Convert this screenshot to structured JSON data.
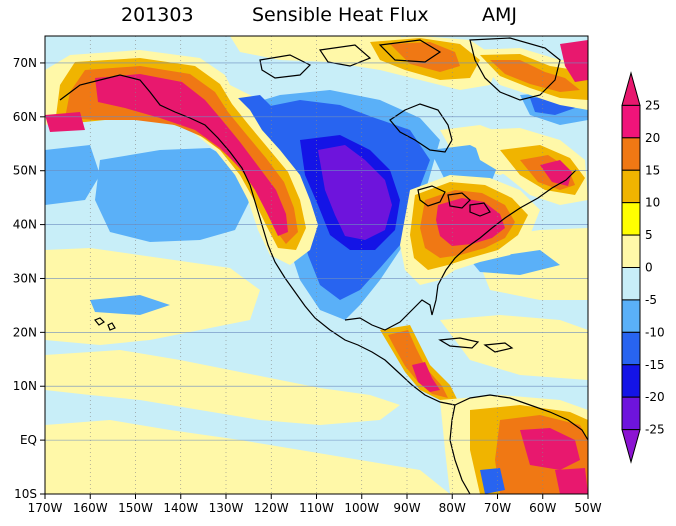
{
  "title": {
    "date": "201303",
    "field": "Sensible Heat Flux",
    "season": "AMJ"
  },
  "map": {
    "lon_labels": [
      "170W",
      "160W",
      "150W",
      "140W",
      "130W",
      "120W",
      "110W",
      "100W",
      "90W",
      "80W",
      "70W",
      "60W",
      "50W"
    ],
    "lat_labels": [
      "70N",
      "60N",
      "50N",
      "40N",
      "30N",
      "20N",
      "10N",
      "EQ",
      "10S"
    ],
    "lon_range": [
      -170,
      -50
    ],
    "lat_range": [
      -10,
      75
    ]
  },
  "colorbar": {
    "levels": [
      "25",
      "20",
      "15",
      "10",
      "5",
      "0",
      "-5",
      "-10",
      "-15",
      "-20",
      "-25"
    ],
    "colors": [
      "#e8186e",
      "#f0147a",
      "#f07814",
      "#f0b400",
      "#ffff00",
      "#fff8a8",
      "#c8eef8",
      "#5ab0f8",
      "#2864f0",
      "#1414e6",
      "#6e14dc",
      "#8c14d2"
    ]
  }
}
